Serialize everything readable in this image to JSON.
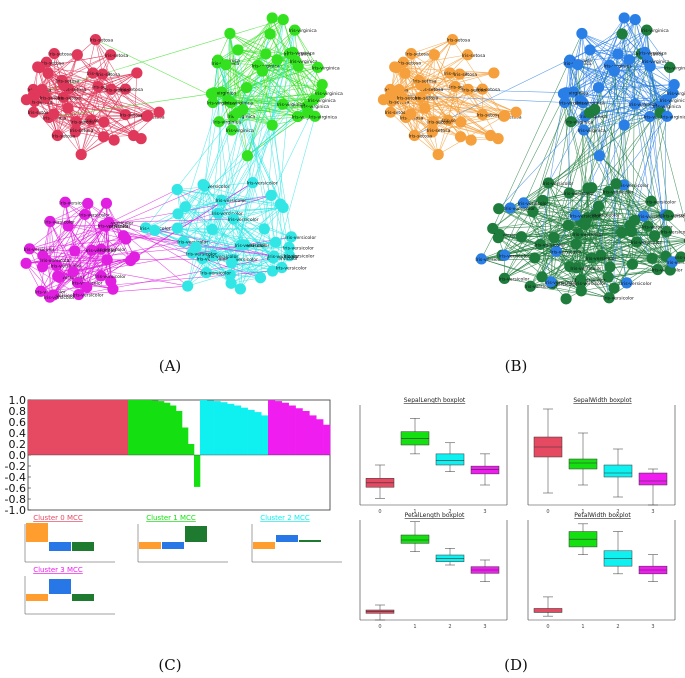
{
  "panel_labels": [
    "(A)",
    "(B)",
    "(C)",
    "(D)"
  ],
  "node_labels": [
    "Iris-setosa",
    "Iris-versicolor",
    "Iris-virginica"
  ],
  "colors": {
    "red": "#e0385a",
    "green": "#33e11f",
    "cyan": "#33e6e6",
    "magenta": "#e01fe0",
    "orange": "#f5a03c",
    "blue": "#2a7fe6",
    "dark_green": "#1e7d3c",
    "cl_red": "#e64a62",
    "cl_green": "#14e011",
    "cl_cyan": "#0ff0f0",
    "cl_magenta": "#f01df0",
    "mcc_orange": "#ff9d2e",
    "mcc_blue": "#2777e6",
    "mcc_green": "#1e7a2e"
  },
  "chart_data": [
    {
      "panel": "C",
      "type": "bar",
      "title": "",
      "yticks": [
        "1.0",
        "0.8",
        "0.6",
        "0.4",
        "0.2",
        "0.0",
        "-0.2",
        "-0.4",
        "-0.6",
        "-0.8",
        "-1.0"
      ],
      "ylim": [
        -1.0,
        1.0
      ],
      "series": [
        {
          "cluster": "0",
          "values": [
            1.0,
            1.0,
            1.0,
            1.0,
            1.0,
            1.0,
            1.0,
            1.0
          ]
        },
        {
          "cluster": "1",
          "values": [
            1.0,
            1.0,
            1.0,
            1.0,
            0.99,
            0.98,
            0.95,
            0.9,
            0.8,
            0.5,
            0.2,
            -0.58
          ]
        },
        {
          "cluster": "2",
          "values": [
            1.0,
            0.99,
            0.98,
            0.96,
            0.93,
            0.9,
            0.86,
            0.82,
            0.78,
            0.72
          ]
        },
        {
          "cluster": "3",
          "values": [
            1.0,
            0.98,
            0.95,
            0.9,
            0.85,
            0.8,
            0.72,
            0.65,
            0.55
          ]
        }
      ]
    },
    {
      "panel": "C",
      "type": "bar",
      "mcc_charts": [
        {
          "title": "Cluster 0 MCC",
          "values": [
            0.95,
            -0.45,
            -0.45
          ]
        },
        {
          "title": "Cluster 1 MCC",
          "values": [
            -0.35,
            -0.35,
            0.8
          ]
        },
        {
          "title": "Cluster 2 MCC",
          "values": [
            -0.35,
            0.35,
            0.1
          ]
        },
        {
          "title": "Cluster 3 MCC",
          "values": [
            -0.35,
            0.75,
            -0.35
          ]
        }
      ]
    },
    {
      "panel": "D",
      "type": "bar",
      "note": "box plots",
      "x": [
        "0",
        "1",
        "2",
        "3"
      ],
      "plots": [
        {
          "title": "SepalLength boxplot",
          "ylim": [
            4.0,
            8.5
          ],
          "boxes": [
            {
              "q1": 4.8,
              "med": 5.0,
              "q3": 5.2,
              "lo": 4.3,
              "hi": 5.8
            },
            {
              "q1": 6.7,
              "med": 7.0,
              "q3": 7.3,
              "lo": 6.3,
              "hi": 7.9
            },
            {
              "q1": 5.8,
              "med": 6.0,
              "q3": 6.3,
              "lo": 5.5,
              "hi": 6.8
            },
            {
              "q1": 5.4,
              "med": 5.6,
              "q3": 5.75,
              "lo": 4.9,
              "hi": 6.3
            }
          ]
        },
        {
          "title": "SepalWidth boxplot",
          "ylim": [
            2.0,
            4.5
          ],
          "boxes": [
            {
              "q1": 3.2,
              "med": 3.45,
              "q3": 3.7,
              "lo": 2.3,
              "hi": 4.4
            },
            {
              "q1": 2.9,
              "med": 3.05,
              "q3": 3.15,
              "lo": 2.5,
              "hi": 3.8
            },
            {
              "q1": 2.7,
              "med": 2.8,
              "q3": 3.0,
              "lo": 2.2,
              "hi": 3.4
            },
            {
              "q1": 2.5,
              "med": 2.6,
              "q3": 2.8,
              "lo": 2.0,
              "hi": 2.9
            }
          ]
        },
        {
          "title": "PetalLength boxplot",
          "ylim": [
            1.0,
            7.0
          ],
          "boxes": [
            {
              "q1": 1.4,
              "med": 1.5,
              "q3": 1.6,
              "lo": 1.0,
              "hi": 1.9
            },
            {
              "q1": 5.6,
              "med": 5.8,
              "q3": 6.1,
              "lo": 5.1,
              "hi": 6.9
            },
            {
              "q1": 4.5,
              "med": 4.7,
              "q3": 4.9,
              "lo": 4.3,
              "hi": 5.3
            },
            {
              "q1": 3.8,
              "med": 4.0,
              "q3": 4.2,
              "lo": 3.3,
              "hi": 4.6
            }
          ]
        },
        {
          "title": "PetalWidth boxplot",
          "ylim": [
            0.0,
            2.6
          ],
          "boxes": [
            {
              "q1": 0.2,
              "med": 0.2,
              "q3": 0.3,
              "lo": 0.1,
              "hi": 0.6
            },
            {
              "q1": 1.9,
              "med": 2.1,
              "q3": 2.3,
              "lo": 1.7,
              "hi": 2.5
            },
            {
              "q1": 1.4,
              "med": 1.6,
              "q3": 1.8,
              "lo": 1.2,
              "hi": 2.3
            },
            {
              "q1": 1.2,
              "med": 1.3,
              "q3": 1.4,
              "lo": 1.0,
              "hi": 1.7
            }
          ]
        }
      ]
    }
  ]
}
